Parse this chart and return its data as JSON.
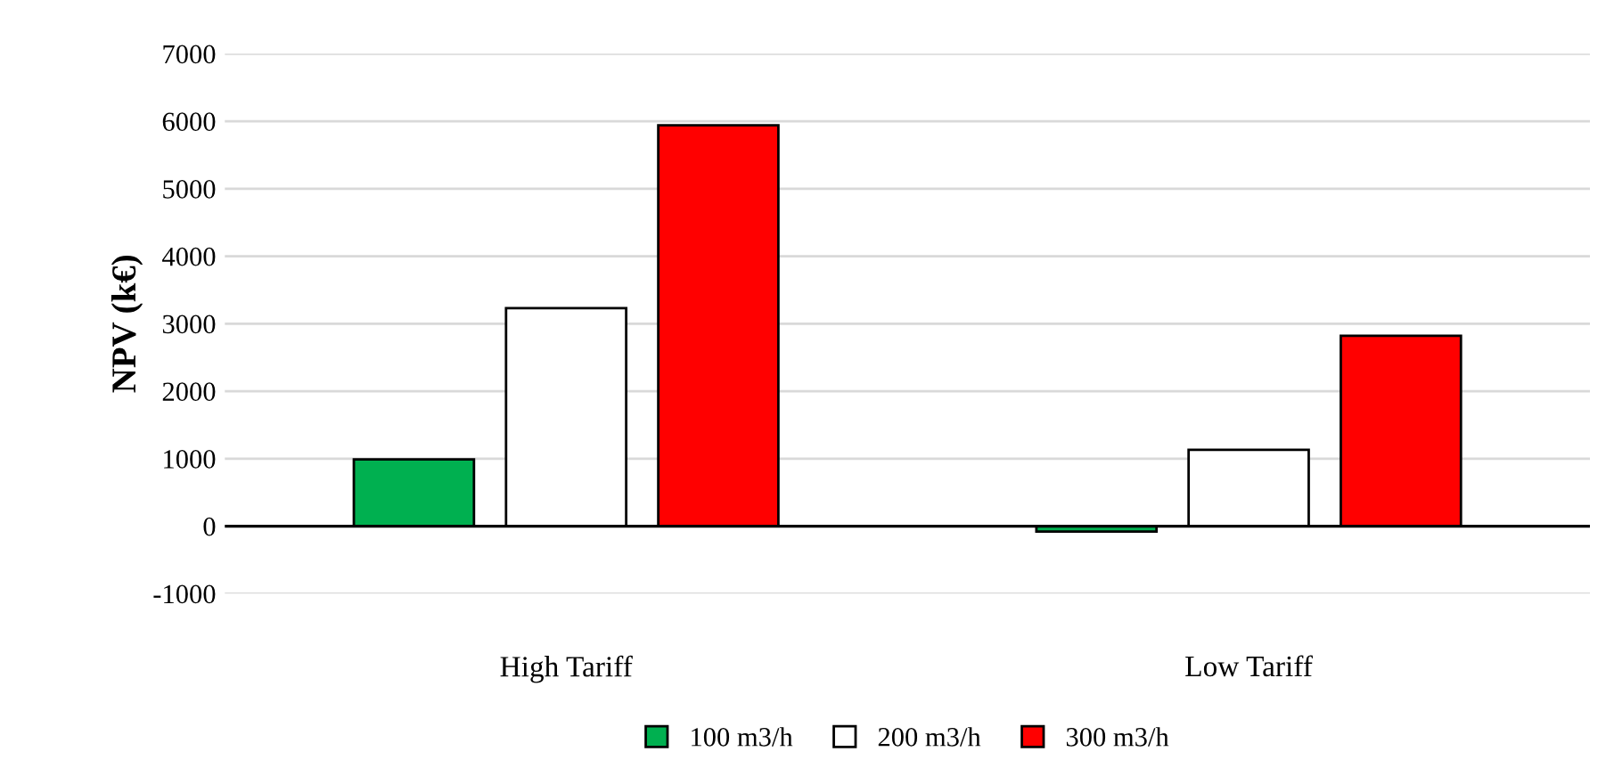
{
  "chart_data": {
    "type": "bar",
    "ylabel": "NPV (k€)",
    "categories": [
      "High Tariff",
      "Low Tariff"
    ],
    "series": [
      {
        "name": "100 m3/h",
        "color": "#00b050",
        "values": [
          990,
          -80
        ]
      },
      {
        "name": "200 m3/h",
        "color": "#ffffff",
        "values": [
          3230,
          1130
        ]
      },
      {
        "name": "300 m3/h",
        "color": "#ff0000",
        "values": [
          5940,
          2820
        ]
      }
    ],
    "ylim": [
      -1000,
      7000
    ],
    "yticks": [
      -1000,
      0,
      1000,
      2000,
      3000,
      4000,
      5000,
      6000,
      7000
    ],
    "grid": "y",
    "legend": "bottom"
  }
}
